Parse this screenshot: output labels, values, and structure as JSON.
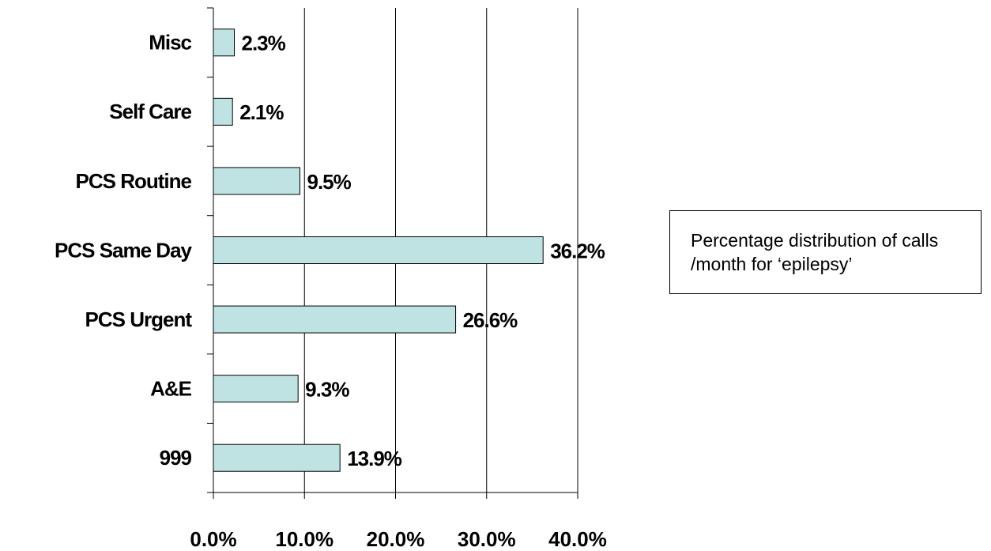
{
  "chart_data": {
    "type": "barh",
    "categories": [
      "Misc",
      "Self Care",
      "PCS Routine",
      "PCS Same Day",
      "PCS Urgent",
      "A&E",
      "999"
    ],
    "values": [
      2.3,
      2.1,
      9.5,
      36.2,
      26.6,
      9.3,
      13.9
    ],
    "value_labels": [
      "2.3%",
      "2.1%",
      "9.5%",
      "36.2%",
      "26.6%",
      "9.3%",
      "13.9%"
    ],
    "color": "#bfe3e3",
    "xlim": [
      0,
      40
    ],
    "xticks": [
      {
        "value": 0,
        "label": "0.0%"
      },
      {
        "value": 10,
        "label": "10.0%"
      },
      {
        "value": 20,
        "label": "20.0%"
      },
      {
        "value": 30,
        "label": "30.0%"
      },
      {
        "value": 40,
        "label": "40.0%"
      }
    ],
    "grid": true,
    "annotation": "Percentage distribution of calls /month for ‘epilepsy’"
  }
}
